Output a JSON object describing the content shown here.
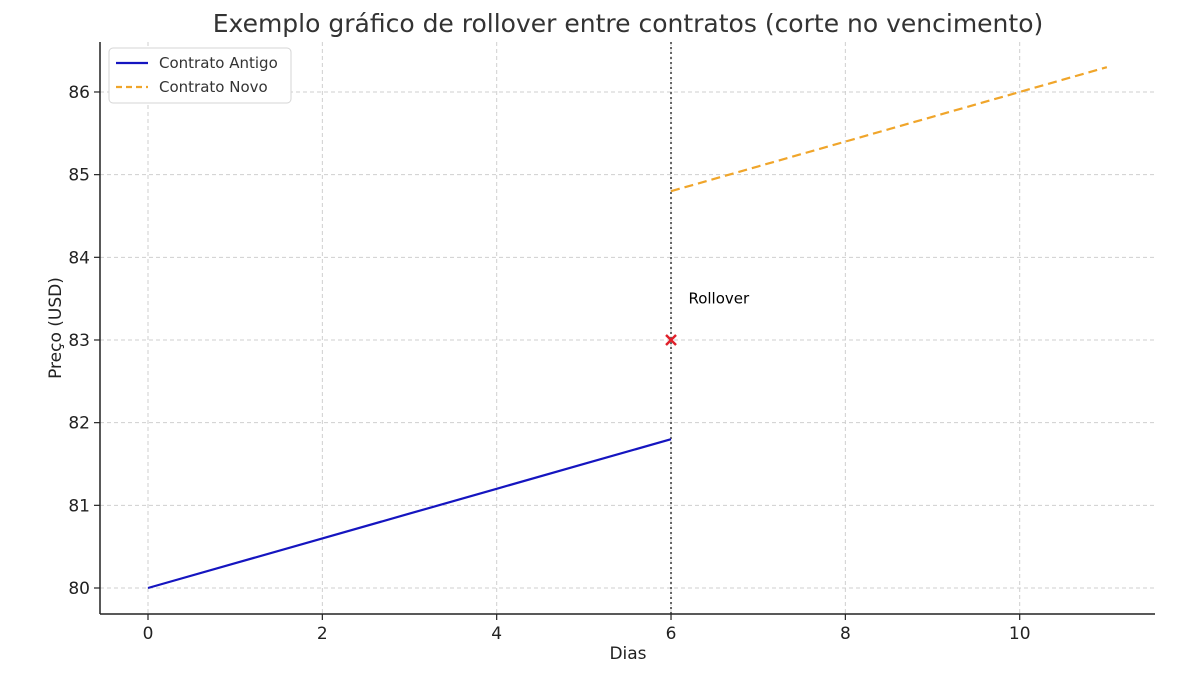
{
  "chart_data": {
    "type": "line",
    "title": "Exemplo gráfico de rollover entre contratos (corte no vencimento)",
    "xlabel": "Dias",
    "ylabel": "Preço (USD)",
    "xlim": [
      -0.55,
      11.6
    ],
    "ylim": [
      79.7,
      86.6
    ],
    "xticks": [
      0,
      2,
      4,
      6,
      8,
      10
    ],
    "yticks": [
      80,
      81,
      82,
      83,
      84,
      85,
      86
    ],
    "grid": true,
    "legend_position": "upper left",
    "series": [
      {
        "name": "Contrato Antigo",
        "color": "#1515c0",
        "style": "solid",
        "x": [
          0,
          1,
          2,
          3,
          4,
          5,
          6
        ],
        "y": [
          80.0,
          80.3,
          80.6,
          80.9,
          81.2,
          81.5,
          81.8
        ]
      },
      {
        "name": "Contrato Novo",
        "color": "#f0a52a",
        "style": "dashed",
        "x": [
          6,
          7,
          8,
          9,
          10,
          11
        ],
        "y": [
          84.8,
          85.1,
          85.4,
          85.7,
          86.0,
          86.3
        ]
      }
    ],
    "vline": {
      "x": 6,
      "color": "#666666",
      "style": "dotted"
    },
    "marker": {
      "x": 6,
      "y": 83,
      "symbol": "x",
      "color": "#e0202a"
    },
    "annotations": [
      {
        "text": "Rollover",
        "x": 6.2,
        "y": 83.5
      }
    ]
  }
}
